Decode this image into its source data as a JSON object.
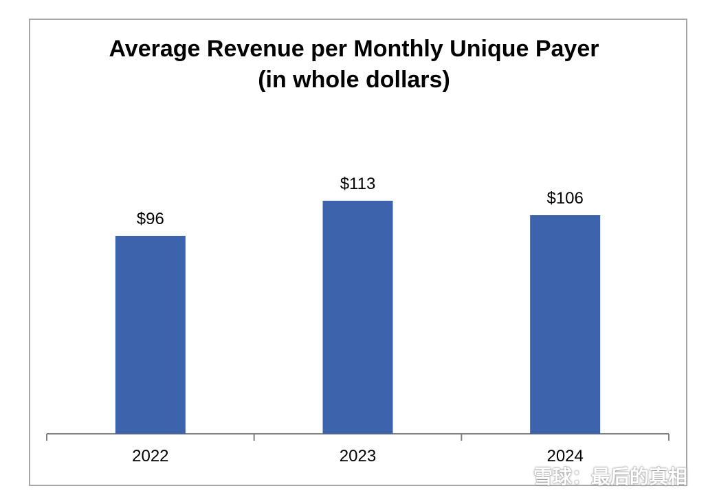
{
  "chart_data": {
    "type": "bar",
    "title": "Average Revenue per Monthly Unique Payer",
    "subtitle": "(in whole dollars)",
    "categories": [
      "2022",
      "2023",
      "2024"
    ],
    "values": [
      96,
      113,
      106
    ],
    "data_labels": [
      "$96",
      "$113",
      "$106"
    ],
    "xlabel": "",
    "ylabel": "",
    "ylim": [
      0,
      150
    ],
    "grid": false,
    "legend": "none",
    "bar_color": "#3d63ac"
  },
  "watermark": {
    "text": "雪球：最后的真相"
  }
}
